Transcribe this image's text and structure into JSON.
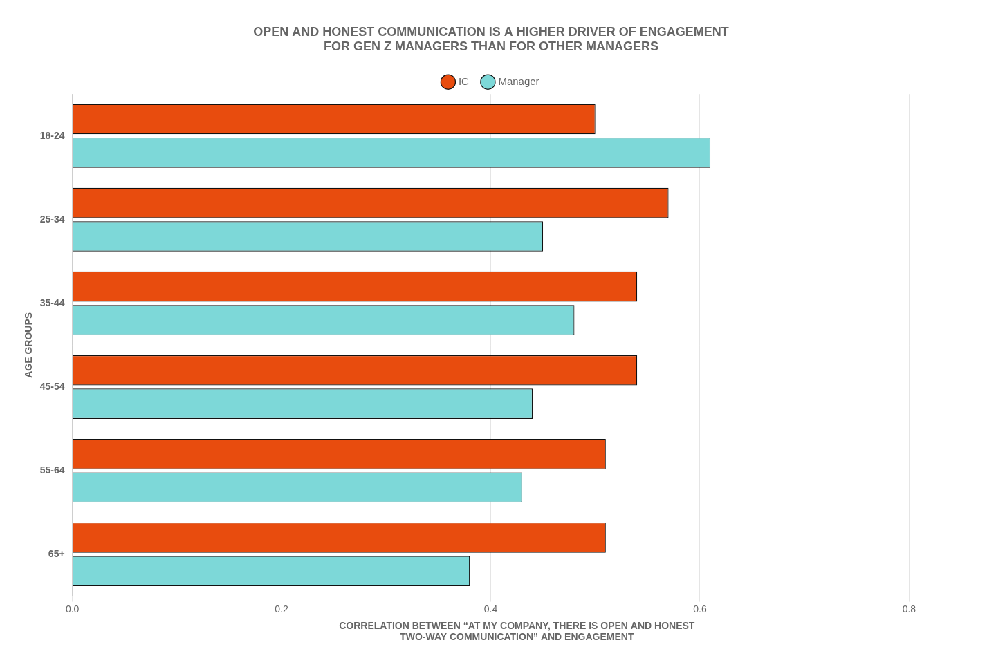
{
  "chart_data": {
    "type": "bar",
    "orientation": "horizontal",
    "title": "OPEN AND HONEST COMMUNICATION IS A HIGHER DRIVER OF ENGAGEMENT\nFOR GEN Z MANAGERS THAN FOR OTHER MANAGERS",
    "x_label": "CORRELATION BETWEEN “AT MY COMPANY, THERE IS OPEN AND HONEST\nTWO-WAY COMMUNICATION” AND ENGAGEMENT",
    "y_label": "AGE GROUPS",
    "categories": [
      "18-24",
      "25-34",
      "35-44",
      "45-54",
      "55-64",
      "65+"
    ],
    "series": [
      {
        "name": "IC",
        "color": "#E84C0E",
        "values": [
          0.5,
          0.57,
          0.54,
          0.54,
          0.51,
          0.51
        ]
      },
      {
        "name": "Manager",
        "color": "#7DD8D8",
        "values": [
          0.61,
          0.45,
          0.48,
          0.44,
          0.43,
          0.38
        ]
      }
    ],
    "xlim": [
      0.0,
      0.85
    ],
    "xticks": [
      {
        "value": 0,
        "label": "0.0"
      },
      0.2,
      0.4,
      0.6,
      0.8
    ],
    "grid": true,
    "legend": "top"
  }
}
